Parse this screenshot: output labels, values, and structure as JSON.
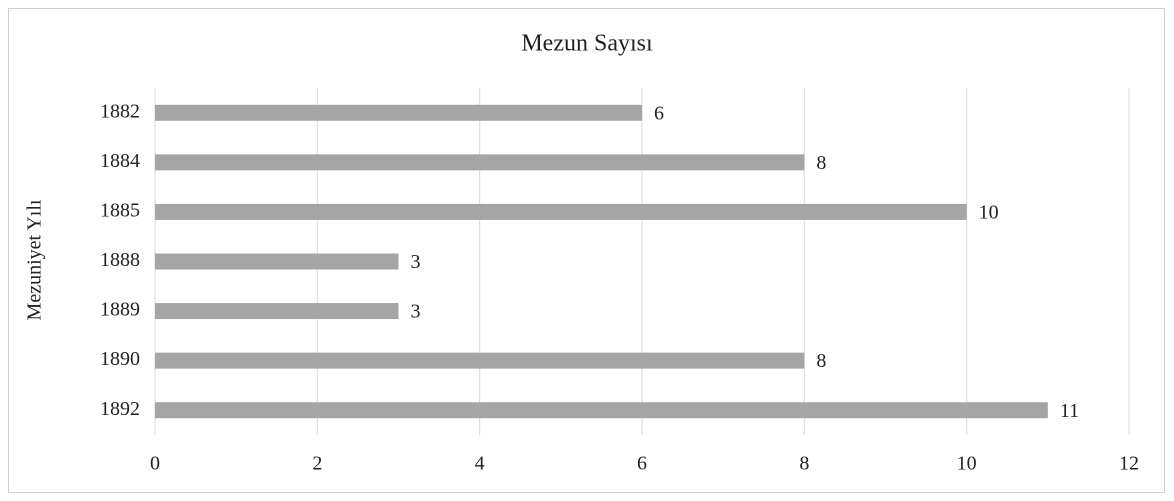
{
  "chart_data": {
    "type": "bar",
    "orientation": "horizontal",
    "title": "Mezun Sayısı",
    "y_label": "Mezuniyet Yılı",
    "categories": [
      "1882",
      "1884",
      "1885",
      "1888",
      "1889",
      "1890",
      "1892"
    ],
    "values": [
      6,
      8,
      10,
      3,
      3,
      8,
      11
    ],
    "color": "#a5a5a5",
    "xlim": [
      0,
      12
    ],
    "xticks": [
      0,
      2,
      4,
      6,
      8,
      10,
      12
    ],
    "grid": true
  }
}
